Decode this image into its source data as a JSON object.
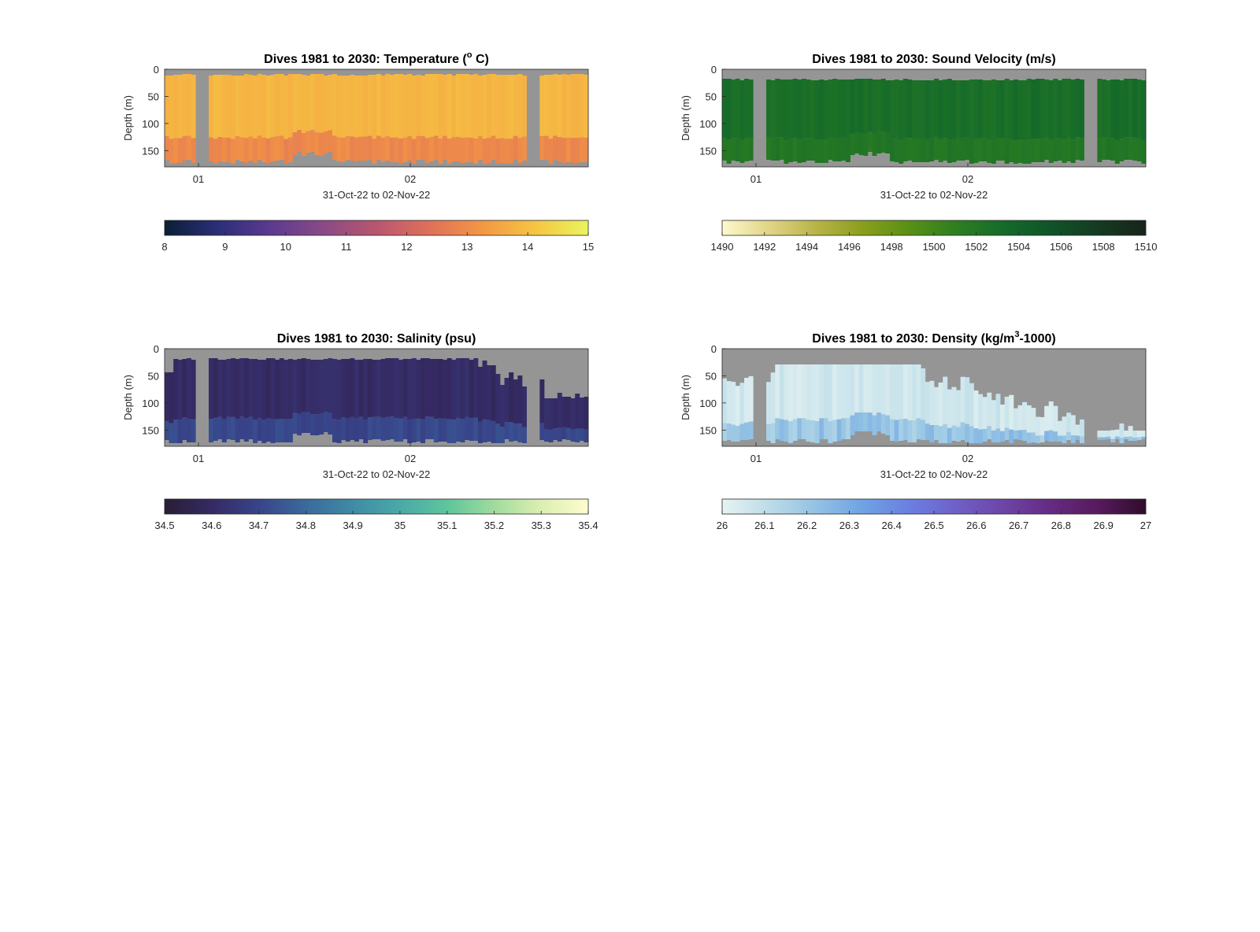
{
  "colors": {
    "missing": "#959595",
    "axis": "#262626"
  },
  "chart_data": [
    {
      "type": "heatmap",
      "title": "Dives 1981 to 2030: Temperature (",
      "title_sup": "o",
      "title_end": " C)",
      "xlabel": "31-Oct-22 to 02-Nov-22",
      "ylabel": "Depth (m)",
      "x_ticks": [
        "01",
        "02"
      ],
      "y_ticks": [
        "0",
        "50",
        "100",
        "150"
      ],
      "ylim": [
        0,
        180
      ],
      "colorbar": {
        "min": 8,
        "max": 15,
        "tick_labels": [
          "8",
          "9",
          "10",
          "11",
          "12",
          "13",
          "14",
          "15"
        ],
        "stops": [
          "#0a1f35",
          "#2b2e78",
          "#5c3a8f",
          "#8a4a86",
          "#b9566f",
          "#e0705a",
          "#f39744",
          "#f6c543",
          "#e9f55d"
        ]
      },
      "field_color": "#f39542",
      "bottom_color": "#e0705a",
      "gaps": [
        "column near 01",
        "column late 02"
      ],
      "value_note": "mostly ~13.8 °C, cooler (~12.5 °C) near bottom around 01–02"
    },
    {
      "type": "heatmap",
      "title": "Dives 1981 to 2030: Sound Velocity (m/s)",
      "xlabel": "31-Oct-22 to 02-Nov-22",
      "ylabel": "Depth (m)",
      "x_ticks": [
        "01",
        "02"
      ],
      "y_ticks": [
        "0",
        "50",
        "100",
        "150"
      ],
      "ylim": [
        0,
        180
      ],
      "colorbar": {
        "min": 1490,
        "max": 1510,
        "tick_labels": [
          "1490",
          "1492",
          "1494",
          "1496",
          "1498",
          "1500",
          "1502",
          "1504",
          "1506",
          "1508",
          "1510"
        ],
        "stops": [
          "#fdf9cd",
          "#e1d486",
          "#b8b447",
          "#8a9e1d",
          "#579016",
          "#2c7e21",
          "#156a2a",
          "#0f5428",
          "#153a22",
          "#17241a"
        ]
      },
      "field_color": "#2f8a1e",
      "bottom_color": "#1f7a1f",
      "value_note": "mostly ~1503–1504 m/s"
    },
    {
      "type": "heatmap",
      "title": "Dives 1981 to 2030: Salinity (psu)",
      "xlabel": "31-Oct-22 to 02-Nov-22",
      "ylabel": "Depth (m)",
      "x_ticks": [
        "01",
        "02"
      ],
      "y_ticks": [
        "0",
        "50",
        "100",
        "150"
      ],
      "ylim": [
        0,
        180
      ],
      "colorbar": {
        "min": 34.5,
        "max": 35.4,
        "tick_labels": [
          "34.5",
          "34.6",
          "34.7",
          "34.8",
          "34.9",
          "35",
          "35.1",
          "35.2",
          "35.3",
          "35.4"
        ],
        "stops": [
          "#291d35",
          "#352a63",
          "#38448a",
          "#3b6a9c",
          "#3f8ba5",
          "#4aa9a7",
          "#5ec59c",
          "#9fdc9c",
          "#dcefb2",
          "#fefccd"
        ]
      },
      "field_color": "#2f2c5e",
      "bottom_color": "#37488a",
      "value_note": "mostly ~34.6 psu"
    },
    {
      "type": "heatmap",
      "title": "Dives 1981 to 2030: Density (kg/m",
      "title_sup": "3",
      "title_end": "-1000)",
      "xlabel": "31-Oct-22 to 02-Nov-22",
      "ylabel": "Depth (m)",
      "x_ticks": [
        "01",
        "02"
      ],
      "y_ticks": [
        "0",
        "50",
        "100",
        "150"
      ],
      "ylim": [
        0,
        180
      ],
      "colorbar": {
        "min": 26,
        "max": 27,
        "tick_labels": [
          "26",
          "26.1",
          "26.2",
          "26.3",
          "26.4",
          "26.5",
          "26.6",
          "26.7",
          "26.8",
          "26.9",
          "27"
        ],
        "stops": [
          "#e6f3f2",
          "#bcdce8",
          "#93c2e4",
          "#6fa2e4",
          "#6a7fe0",
          "#6f5fc6",
          "#6d44a6",
          "#652a82",
          "#571a5c",
          "#2f0c2c"
        ]
      },
      "field_color": "#d8eef1",
      "bottom_color": "#6fa2e4",
      "value_note": "mostly ~26.05, up to ~26.3 near bottom"
    }
  ]
}
